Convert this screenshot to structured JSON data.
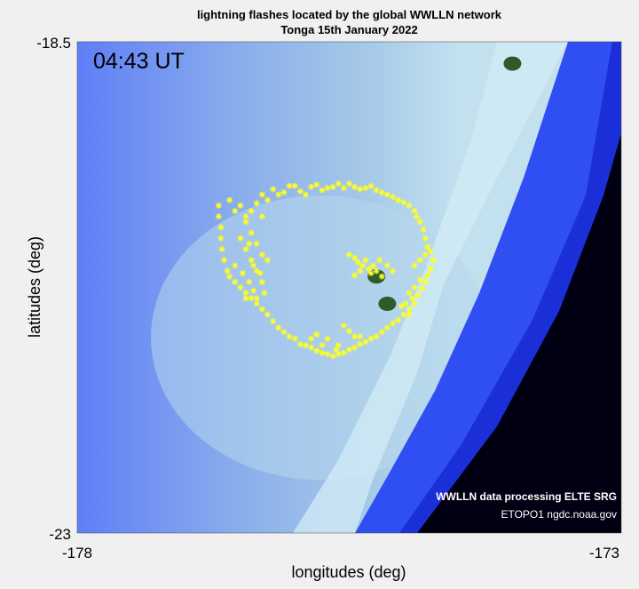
{
  "title_line1": "lightning flashes located by the global WWLLN network",
  "title_line2": "Tonga 15th January 2022",
  "timestamp": "04:43 UT",
  "credit_line1": "WWLLN data processing ELTE SRG",
  "credit_line2": "ETOPO1 ngdc.noaa.gov",
  "colors": {
    "flash": "#ffff22",
    "deep_ocean": "#000010",
    "ocean": "#3a56f0",
    "shallow": "#9fc6ea",
    "land": "#2f5a2a",
    "background": "#f0f0f0"
  },
  "chart_data": {
    "type": "scatter",
    "title": "lightning flashes located by the global WWLLN network",
    "subtitle": "Tonga 15th January 2022",
    "xlabel": "longitudes (deg)",
    "ylabel": "latitudes (deg)",
    "xlim": [
      -178,
      -173
    ],
    "ylim": [
      -23,
      -18.5
    ],
    "x_ticks": [
      -178,
      -173
    ],
    "y_ticks": [
      -18.5,
      -23
    ],
    "x_tick_labels": [
      "-178",
      "-173"
    ],
    "y_tick_labels": [
      "-18.5",
      "-23"
    ],
    "grid": false,
    "marker": "star",
    "series": [
      {
        "points": [
          [
            -176.7,
            -20.0
          ],
          [
            -176.6,
            -19.95
          ],
          [
            -176.55,
            -20.05
          ],
          [
            -176.5,
            -20.0
          ],
          [
            -176.45,
            -20.1
          ],
          [
            -176.4,
            -20.05
          ],
          [
            -176.35,
            -19.98
          ],
          [
            -176.3,
            -20.1
          ],
          [
            -176.3,
            -19.9
          ],
          [
            -176.25,
            -19.95
          ],
          [
            -176.2,
            -19.85
          ],
          [
            -176.15,
            -19.9
          ],
          [
            -176.1,
            -19.88
          ],
          [
            -176.05,
            -19.82
          ],
          [
            -176.0,
            -19.82
          ],
          [
            -175.95,
            -19.87
          ],
          [
            -175.9,
            -19.9
          ],
          [
            -175.85,
            -19.83
          ],
          [
            -175.8,
            -19.81
          ],
          [
            -175.75,
            -19.86
          ],
          [
            -175.7,
            -19.84
          ],
          [
            -175.65,
            -19.83
          ],
          [
            -175.6,
            -19.8
          ],
          [
            -175.55,
            -19.84
          ],
          [
            -175.5,
            -19.8
          ],
          [
            -175.45,
            -19.83
          ],
          [
            -175.4,
            -19.85
          ],
          [
            -175.35,
            -19.84
          ],
          [
            -175.3,
            -19.82
          ],
          [
            -175.25,
            -19.86
          ],
          [
            -175.2,
            -19.88
          ],
          [
            -175.15,
            -19.9
          ],
          [
            -175.1,
            -19.92
          ],
          [
            -175.05,
            -19.95
          ],
          [
            -175.0,
            -19.97
          ],
          [
            -174.95,
            -20.0
          ],
          [
            -174.9,
            -20.05
          ],
          [
            -174.88,
            -20.1
          ],
          [
            -174.85,
            -20.15
          ],
          [
            -174.82,
            -20.22
          ],
          [
            -174.8,
            -20.3
          ],
          [
            -174.78,
            -20.38
          ],
          [
            -174.75,
            -20.42
          ],
          [
            -174.73,
            -20.5
          ],
          [
            -174.75,
            -20.58
          ],
          [
            -174.78,
            -20.64
          ],
          [
            -174.8,
            -20.7
          ],
          [
            -174.83,
            -20.76
          ],
          [
            -174.87,
            -20.82
          ],
          [
            -174.9,
            -20.9
          ],
          [
            -174.95,
            -20.95
          ],
          [
            -175.0,
            -21.0
          ],
          [
            -175.05,
            -21.05
          ],
          [
            -175.1,
            -21.08
          ],
          [
            -175.15,
            -21.12
          ],
          [
            -175.2,
            -21.16
          ],
          [
            -175.25,
            -21.2
          ],
          [
            -175.3,
            -21.22
          ],
          [
            -175.35,
            -21.25
          ],
          [
            -175.4,
            -21.27
          ],
          [
            -175.45,
            -21.3
          ],
          [
            -175.5,
            -21.32
          ],
          [
            -175.55,
            -21.35
          ],
          [
            -175.6,
            -21.36
          ],
          [
            -175.65,
            -21.38
          ],
          [
            -175.7,
            -21.36
          ],
          [
            -175.75,
            -21.35
          ],
          [
            -175.8,
            -21.33
          ],
          [
            -175.85,
            -21.3
          ],
          [
            -175.9,
            -21.28
          ],
          [
            -175.95,
            -21.27
          ],
          [
            -176.0,
            -21.22
          ],
          [
            -176.05,
            -21.2
          ],
          [
            -176.1,
            -21.16
          ],
          [
            -176.15,
            -21.12
          ],
          [
            -176.2,
            -21.06
          ],
          [
            -176.25,
            -21.0
          ],
          [
            -176.3,
            -20.95
          ],
          [
            -176.35,
            -20.9
          ],
          [
            -176.4,
            -20.85
          ],
          [
            -176.45,
            -20.8
          ],
          [
            -176.5,
            -20.75
          ],
          [
            -176.55,
            -20.7
          ],
          [
            -176.6,
            -20.65
          ],
          [
            -176.62,
            -20.6
          ],
          [
            -176.65,
            -20.5
          ],
          [
            -176.67,
            -20.4
          ],
          [
            -176.68,
            -20.3
          ],
          [
            -176.68,
            -20.2
          ],
          [
            -176.7,
            -20.1
          ],
          [
            -176.45,
            -20.15
          ],
          [
            -176.4,
            -20.25
          ],
          [
            -176.35,
            -20.35
          ],
          [
            -176.3,
            -20.45
          ],
          [
            -176.25,
            -20.5
          ],
          [
            -176.5,
            -20.3
          ],
          [
            -176.45,
            -20.4
          ],
          [
            -176.4,
            -20.5
          ],
          [
            -176.35,
            -20.6
          ],
          [
            -176.3,
            -20.7
          ],
          [
            -176.42,
            -20.35
          ],
          [
            -176.38,
            -20.55
          ],
          [
            -176.32,
            -20.62
          ],
          [
            -176.28,
            -20.8
          ],
          [
            -176.35,
            -20.85
          ],
          [
            -176.55,
            -20.55
          ],
          [
            -176.48,
            -20.62
          ],
          [
            -176.42,
            -20.7
          ],
          [
            -176.38,
            -20.78
          ],
          [
            -176.45,
            -20.85
          ],
          [
            -175.5,
            -20.45
          ],
          [
            -175.45,
            -20.48
          ],
          [
            -175.42,
            -20.52
          ],
          [
            -175.38,
            -20.55
          ],
          [
            -175.35,
            -20.5
          ],
          [
            -175.32,
            -20.58
          ],
          [
            -175.28,
            -20.55
          ],
          [
            -175.25,
            -20.6
          ],
          [
            -175.3,
            -20.62
          ],
          [
            -175.4,
            -20.6
          ],
          [
            -175.22,
            -20.5
          ],
          [
            -175.2,
            -20.65
          ],
          [
            -175.45,
            -20.64
          ],
          [
            -175.15,
            -20.55
          ],
          [
            -175.1,
            -20.6
          ],
          [
            -174.9,
            -20.55
          ],
          [
            -174.85,
            -20.68
          ],
          [
            -174.9,
            -20.75
          ],
          [
            -174.95,
            -20.8
          ],
          [
            -174.98,
            -20.9
          ],
          [
            -174.92,
            -20.85
          ],
          [
            -174.95,
            -21.0
          ],
          [
            -175.02,
            -20.92
          ],
          [
            -174.8,
            -20.45
          ],
          [
            -174.85,
            -20.5
          ],
          [
            -175.55,
            -21.1
          ],
          [
            -175.5,
            -21.15
          ],
          [
            -175.45,
            -21.2
          ],
          [
            -175.4,
            -21.2
          ],
          [
            -175.6,
            -21.28
          ],
          [
            -175.7,
            -21.22
          ],
          [
            -175.75,
            -21.28
          ],
          [
            -175.8,
            -21.18
          ],
          [
            -175.85,
            -21.22
          ],
          [
            -175.62,
            -21.32
          ]
        ]
      }
    ],
    "islands": [
      {
        "x": -175.25,
        "y": -20.65
      },
      {
        "x": -175.15,
        "y": -20.9
      },
      {
        "x": -174.0,
        "y": -18.7
      }
    ]
  }
}
